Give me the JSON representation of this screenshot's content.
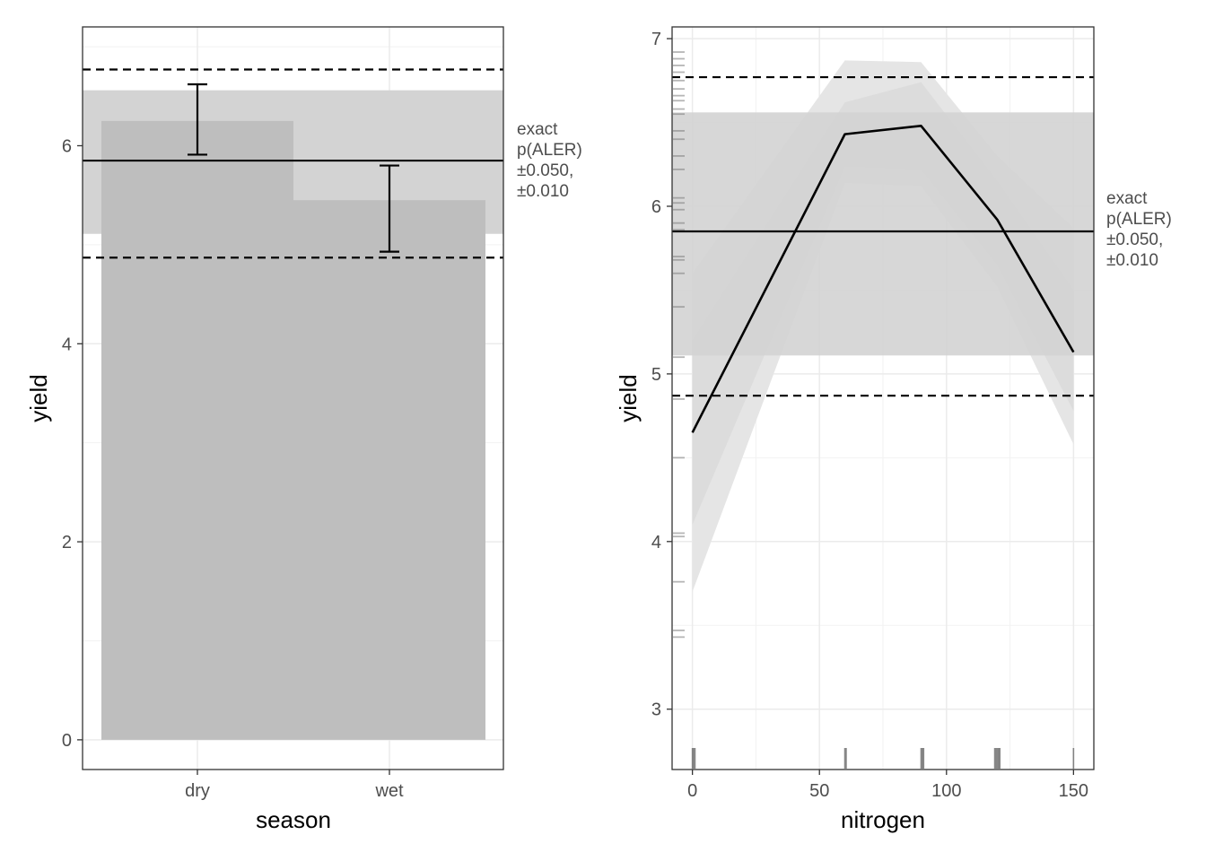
{
  "chart_data": [
    {
      "type": "bar",
      "panel": "left",
      "xlabel": "season",
      "ylabel": "yield",
      "categories": [
        "dry",
        "wet"
      ],
      "values": [
        6.25,
        5.45
      ],
      "error_bars": [
        {
          "category": "dry",
          "low": 5.91,
          "high": 6.62
        },
        {
          "category": "wet",
          "low": 4.93,
          "high": 5.8
        }
      ],
      "ylim": [
        -0.3,
        7.2
      ],
      "yticks": [
        0,
        2,
        4,
        6
      ],
      "yticklabels": [
        "0",
        "2",
        "4",
        "6"
      ],
      "reference": {
        "mean": 5.85,
        "band": [
          5.11,
          6.56
        ],
        "dashed": [
          4.87,
          6.77
        ]
      },
      "annotation": [
        "exact",
        "p(ALER)",
        "±0.050,",
        "±0.010"
      ],
      "colors": {
        "bar": "#bebebe",
        "band": "#d3d3d3",
        "line": "#000000"
      }
    },
    {
      "type": "line",
      "panel": "right",
      "xlabel": "nitrogen",
      "ylabel": "yield",
      "x": [
        0,
        60,
        90,
        120,
        150
      ],
      "y": [
        4.65,
        6.43,
        6.48,
        5.92,
        5.13
      ],
      "ci_outer": {
        "low": [
          3.7,
          6.14,
          6.12,
          5.52,
          4.58
        ],
        "high": [
          5.6,
          6.87,
          6.86,
          6.3,
          5.87
        ]
      },
      "ci_inner": {
        "low": [
          4.1,
          6.24,
          6.22,
          5.65,
          4.78
        ],
        "high": [
          5.2,
          6.62,
          6.74,
          6.15,
          5.5
        ]
      },
      "xlim": [
        -8,
        158
      ],
      "ylim": [
        2.64,
        7.07
      ],
      "xticks": [
        0,
        50,
        100,
        150
      ],
      "xticklabels": [
        "0",
        "50",
        "100",
        "150"
      ],
      "yticks": [
        3,
        4,
        5,
        6,
        7
      ],
      "yticklabels": [
        "3",
        "4",
        "5",
        "6",
        "7"
      ],
      "rug_x": [
        0,
        0.5,
        1,
        60,
        60.5,
        90,
        90.5,
        91,
        119,
        119.5,
        120,
        120.5,
        121,
        150
      ],
      "rug_y": [
        6.92,
        6.88,
        6.84,
        6.8,
        6.75,
        6.7,
        6.66,
        6.63,
        6.58,
        6.55,
        6.45,
        6.4,
        6.3,
        6.22,
        6.05,
        6.02,
        5.98,
        5.9,
        5.86,
        5.7,
        5.68,
        5.6,
        5.4,
        5.1,
        4.85,
        4.5,
        4.05,
        4.03,
        3.76,
        3.47,
        3.43
      ],
      "reference": {
        "mean": 5.85,
        "band": [
          5.11,
          6.56
        ],
        "dashed": [
          4.87,
          6.77
        ]
      },
      "annotation": [
        "exact",
        "p(ALER)",
        "±0.050,",
        "±0.010"
      ],
      "colors": {
        "line": "#000000",
        "ci": "#e4e4e4",
        "band": "#d3d3d3",
        "rug": "#555555"
      }
    }
  ]
}
